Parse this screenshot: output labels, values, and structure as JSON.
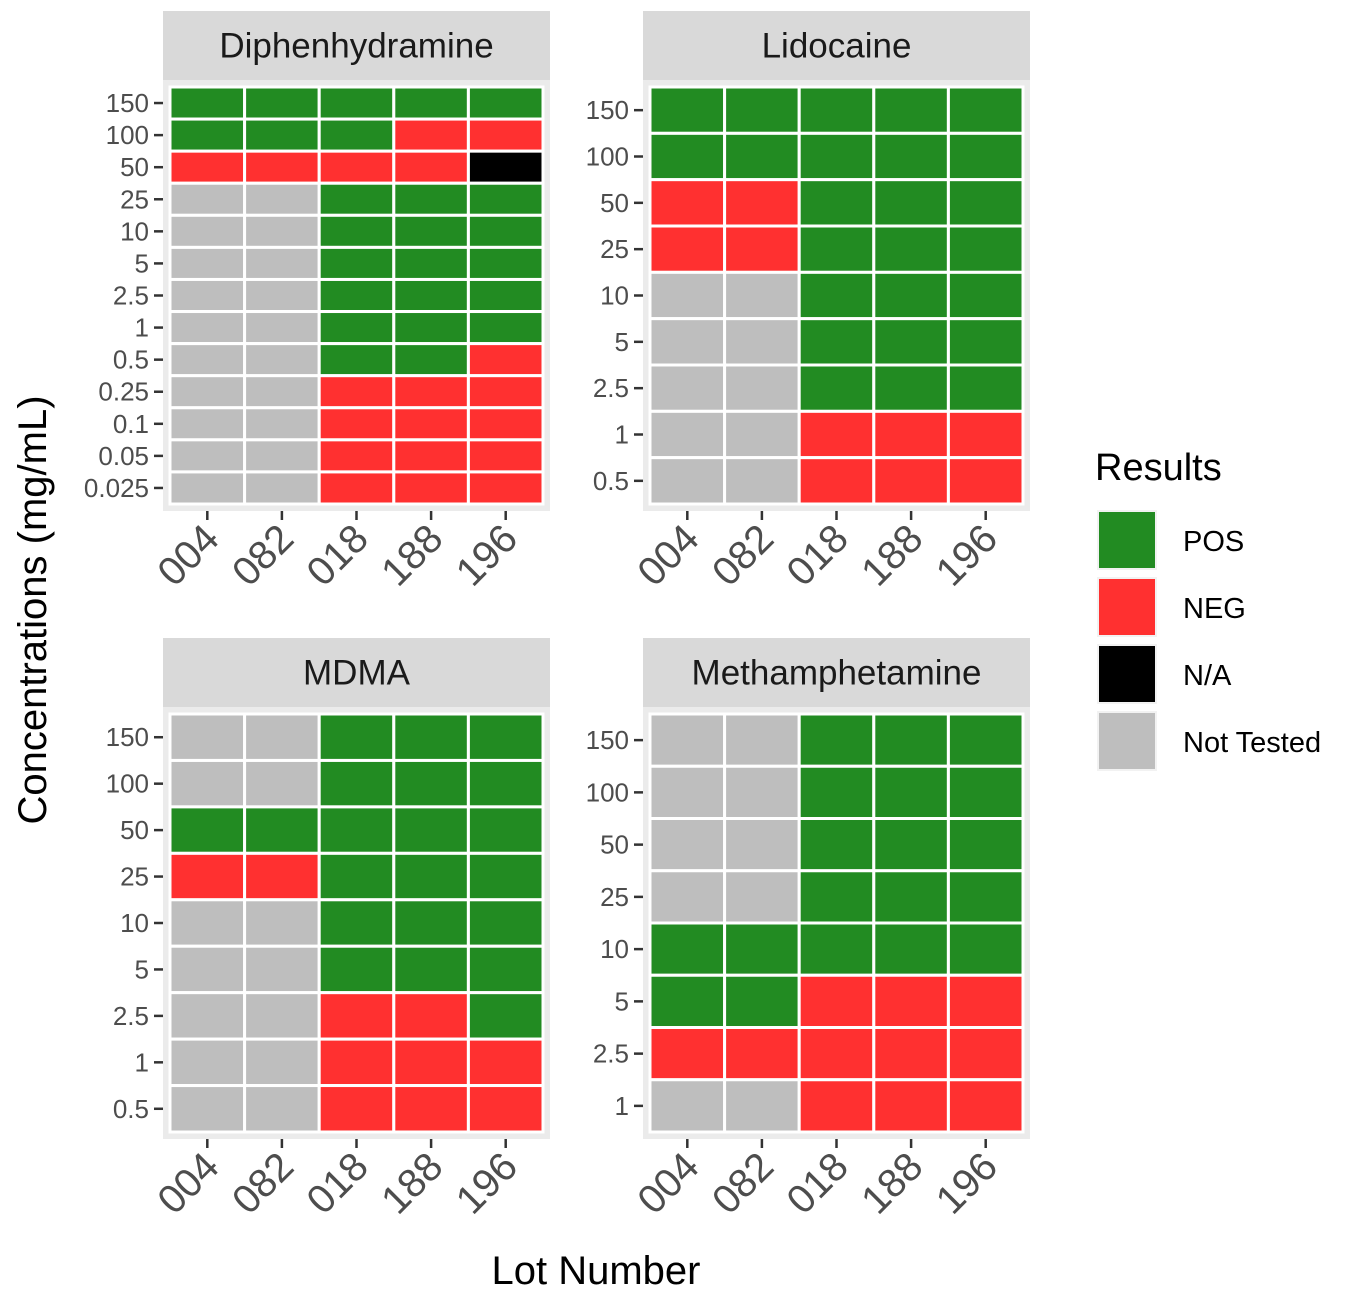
{
  "chart_data": {
    "type": "heatmap",
    "xlabel": "Lot Number",
    "ylabel": "Concentrations (mg/mL)",
    "legend": {
      "title": "Results",
      "position": "right",
      "entries": [
        {
          "key": "POS",
          "label": "POS",
          "color": "#228b22"
        },
        {
          "key": "NEG",
          "label": "NEG",
          "color": "#ff3030"
        },
        {
          "key": "NA",
          "label": "N/A",
          "color": "#000000"
        },
        {
          "key": "NT",
          "label": "Not Tested",
          "color": "#bebebe"
        }
      ]
    },
    "panels": [
      {
        "title": "Diphenhydramine",
        "lots": [
          "004",
          "082",
          "018",
          "188",
          "196"
        ],
        "concentrations": [
          "150",
          "100",
          "50",
          "25",
          "10",
          "5",
          "2.5",
          "1",
          "0.5",
          "0.25",
          "0.1",
          "0.05",
          "0.025"
        ],
        "results": [
          [
            "POS",
            "POS",
            "POS",
            "POS",
            "POS"
          ],
          [
            "POS",
            "POS",
            "POS",
            "NEG",
            "NEG"
          ],
          [
            "NEG",
            "NEG",
            "NEG",
            "NEG",
            "NA"
          ],
          [
            "NT",
            "NT",
            "POS",
            "POS",
            "POS"
          ],
          [
            "NT",
            "NT",
            "POS",
            "POS",
            "POS"
          ],
          [
            "NT",
            "NT",
            "POS",
            "POS",
            "POS"
          ],
          [
            "NT",
            "NT",
            "POS",
            "POS",
            "POS"
          ],
          [
            "NT",
            "NT",
            "POS",
            "POS",
            "POS"
          ],
          [
            "NT",
            "NT",
            "POS",
            "POS",
            "NEG"
          ],
          [
            "NT",
            "NT",
            "NEG",
            "NEG",
            "NEG"
          ],
          [
            "NT",
            "NT",
            "NEG",
            "NEG",
            "NEG"
          ],
          [
            "NT",
            "NT",
            "NEG",
            "NEG",
            "NEG"
          ],
          [
            "NT",
            "NT",
            "NEG",
            "NEG",
            "NEG"
          ]
        ]
      },
      {
        "title": "Lidocaine",
        "lots": [
          "004",
          "082",
          "018",
          "188",
          "196"
        ],
        "concentrations": [
          "150",
          "100",
          "50",
          "25",
          "10",
          "5",
          "2.5",
          "1",
          "0.5"
        ],
        "results": [
          [
            "POS",
            "POS",
            "POS",
            "POS",
            "POS"
          ],
          [
            "POS",
            "POS",
            "POS",
            "POS",
            "POS"
          ],
          [
            "NEG",
            "NEG",
            "POS",
            "POS",
            "POS"
          ],
          [
            "NEG",
            "NEG",
            "POS",
            "POS",
            "POS"
          ],
          [
            "NT",
            "NT",
            "POS",
            "POS",
            "POS"
          ],
          [
            "NT",
            "NT",
            "POS",
            "POS",
            "POS"
          ],
          [
            "NT",
            "NT",
            "POS",
            "POS",
            "POS"
          ],
          [
            "NT",
            "NT",
            "NEG",
            "NEG",
            "NEG"
          ],
          [
            "NT",
            "NT",
            "NEG",
            "NEG",
            "NEG"
          ]
        ]
      },
      {
        "title": "MDMA",
        "lots": [
          "004",
          "082",
          "018",
          "188",
          "196"
        ],
        "concentrations": [
          "150",
          "100",
          "50",
          "25",
          "10",
          "5",
          "2.5",
          "1",
          "0.5"
        ],
        "results": [
          [
            "NT",
            "NT",
            "POS",
            "POS",
            "POS"
          ],
          [
            "NT",
            "NT",
            "POS",
            "POS",
            "POS"
          ],
          [
            "POS",
            "POS",
            "POS",
            "POS",
            "POS"
          ],
          [
            "NEG",
            "NEG",
            "POS",
            "POS",
            "POS"
          ],
          [
            "NT",
            "NT",
            "POS",
            "POS",
            "POS"
          ],
          [
            "NT",
            "NT",
            "POS",
            "POS",
            "POS"
          ],
          [
            "NT",
            "NT",
            "NEG",
            "NEG",
            "POS"
          ],
          [
            "NT",
            "NT",
            "NEG",
            "NEG",
            "NEG"
          ],
          [
            "NT",
            "NT",
            "NEG",
            "NEG",
            "NEG"
          ]
        ]
      },
      {
        "title": "Methamphetamine",
        "lots": [
          "004",
          "082",
          "018",
          "188",
          "196"
        ],
        "concentrations": [
          "150",
          "100",
          "50",
          "25",
          "10",
          "5",
          "2.5",
          "1"
        ],
        "results": [
          [
            "NT",
            "NT",
            "POS",
            "POS",
            "POS"
          ],
          [
            "NT",
            "NT",
            "POS",
            "POS",
            "POS"
          ],
          [
            "NT",
            "NT",
            "POS",
            "POS",
            "POS"
          ],
          [
            "NT",
            "NT",
            "POS",
            "POS",
            "POS"
          ],
          [
            "POS",
            "POS",
            "POS",
            "POS",
            "POS"
          ],
          [
            "POS",
            "POS",
            "NEG",
            "NEG",
            "NEG"
          ],
          [
            "NEG",
            "NEG",
            "NEG",
            "NEG",
            "NEG"
          ],
          [
            "NT",
            "NT",
            "NEG",
            "NEG",
            "NEG"
          ]
        ]
      }
    ]
  }
}
